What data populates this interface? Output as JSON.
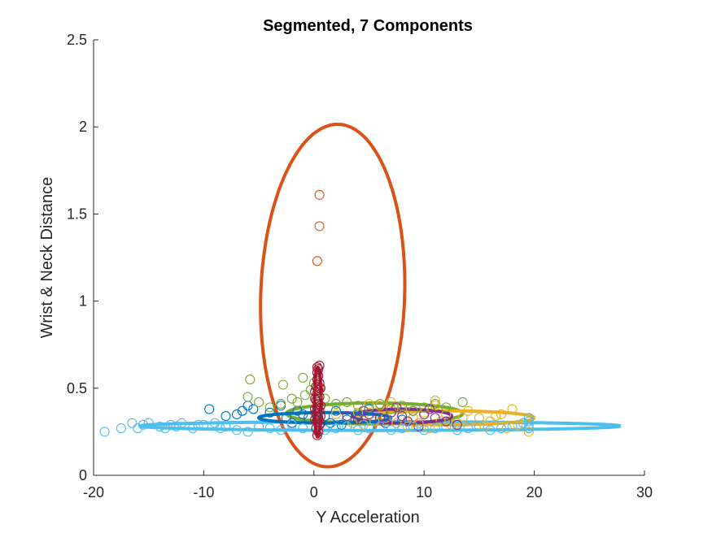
{
  "chart_data": {
    "type": "scatter",
    "title": "Segmented, 7 Components",
    "xlabel": "Y Acceleration",
    "ylabel": "Wrist & Neck Distance",
    "xlim": [
      -20,
      30
    ],
    "ylim": [
      0,
      2.5
    ],
    "xticks": [
      -20,
      -10,
      0,
      10,
      20,
      30
    ],
    "xtick_labels": [
      "-20",
      "-10",
      "0",
      "10",
      "20",
      "30"
    ],
    "yticks": [
      0,
      0.5,
      1,
      1.5,
      2,
      2.5
    ],
    "ytick_labels": [
      "0",
      "0.5",
      "1",
      "1.5",
      "2",
      "2.5"
    ],
    "grid": false,
    "marker": "open-circle",
    "series": [
      {
        "color": "#0072BD",
        "points": [
          [
            -9.5,
            0.38
          ],
          [
            -6,
            0.4
          ],
          [
            -5.5,
            0.38
          ],
          [
            -4,
            0.36
          ],
          [
            -3,
            0.4
          ],
          [
            -2.5,
            0.33
          ],
          [
            -1.5,
            0.37
          ],
          [
            -1,
            0.35
          ],
          [
            -0.5,
            0.33
          ],
          [
            0.2,
            0.36
          ],
          [
            1,
            0.34
          ],
          [
            2,
            0.37
          ],
          [
            3,
            0.32
          ],
          [
            4,
            0.35
          ],
          [
            5,
            0.38
          ],
          [
            6,
            0.33
          ],
          [
            7,
            0.36
          ],
          [
            8,
            0.32
          ],
          [
            -7,
            0.35
          ],
          [
            -8,
            0.34
          ],
          [
            -6.5,
            0.37
          ],
          [
            1.5,
            0.3
          ],
          [
            2.5,
            0.29
          ],
          [
            -2,
            0.3
          ]
        ]
      },
      {
        "color": "#D95319",
        "points": [
          [
            0.5,
            1.61
          ],
          [
            0.5,
            1.43
          ],
          [
            0.3,
            1.23
          ]
        ]
      },
      {
        "color": "#EDB120",
        "points": [
          [
            2,
            0.35
          ],
          [
            4,
            0.36
          ],
          [
            6,
            0.4
          ],
          [
            7,
            0.42
          ],
          [
            8,
            0.38
          ],
          [
            9,
            0.33
          ],
          [
            10,
            0.36
          ],
          [
            11,
            0.4
          ],
          [
            12,
            0.35
          ],
          [
            13,
            0.3
          ],
          [
            14,
            0.37
          ],
          [
            15,
            0.33
          ],
          [
            16,
            0.31
          ],
          [
            17,
            0.35
          ],
          [
            18,
            0.38
          ],
          [
            19,
            0.3
          ],
          [
            19.5,
            0.25
          ],
          [
            19.5,
            0.33
          ],
          [
            18.5,
            0.29
          ],
          [
            17.5,
            0.27
          ],
          [
            16.5,
            0.34
          ],
          [
            15.5,
            0.28
          ],
          [
            13.5,
            0.33
          ],
          [
            12.5,
            0.29
          ],
          [
            11.5,
            0.31
          ],
          [
            10.5,
            0.27
          ],
          [
            9.5,
            0.3
          ],
          [
            8.5,
            0.28
          ],
          [
            7.5,
            0.3
          ],
          [
            6.5,
            0.33
          ],
          [
            5.5,
            0.31
          ],
          [
            4.5,
            0.29
          ],
          [
            3.5,
            0.3
          ],
          [
            5,
            0.41
          ],
          [
            11,
            0.43
          ]
        ]
      },
      {
        "color": "#7E2F8E",
        "points": [
          [
            3,
            0.34
          ],
          [
            4,
            0.32
          ],
          [
            5,
            0.35
          ],
          [
            6,
            0.33
          ],
          [
            7,
            0.36
          ],
          [
            8,
            0.34
          ],
          [
            9,
            0.37
          ],
          [
            10,
            0.35
          ],
          [
            11,
            0.33
          ],
          [
            12,
            0.31
          ],
          [
            13,
            0.29
          ],
          [
            4.5,
            0.37
          ],
          [
            6.5,
            0.3
          ],
          [
            8.5,
            0.31
          ],
          [
            10.5,
            0.38
          ],
          [
            9.5,
            0.28
          ],
          [
            7.5,
            0.39
          ]
        ]
      },
      {
        "color": "#77AC30",
        "points": [
          [
            -5.8,
            0.55
          ],
          [
            -6,
            0.45
          ],
          [
            -2.8,
            0.52
          ],
          [
            -1,
            0.56
          ],
          [
            -0.8,
            0.46
          ],
          [
            -1.5,
            0.42
          ],
          [
            -3,
            0.41
          ],
          [
            -5,
            0.42
          ],
          [
            -4,
            0.39
          ],
          [
            1,
            0.44
          ],
          [
            2,
            0.41
          ],
          [
            3,
            0.42
          ],
          [
            4,
            0.4
          ],
          [
            5,
            0.39
          ],
          [
            6,
            0.41
          ],
          [
            7,
            0.38
          ],
          [
            8,
            0.4
          ],
          [
            9,
            0.37
          ],
          [
            10,
            0.39
          ],
          [
            11,
            0.41
          ],
          [
            12,
            0.39
          ],
          [
            13.5,
            0.42
          ],
          [
            -2,
            0.44
          ],
          [
            0.5,
            0.5
          ],
          [
            -0.3,
            0.49
          ],
          [
            0,
            0.53
          ]
        ]
      },
      {
        "color": "#4DBEEE",
        "points": [
          [
            -19,
            0.25
          ],
          [
            -17.5,
            0.27
          ],
          [
            -16.5,
            0.3
          ],
          [
            -16,
            0.27
          ],
          [
            -15,
            0.3
          ],
          [
            -14,
            0.28
          ],
          [
            -13,
            0.29
          ],
          [
            -12,
            0.3
          ],
          [
            -11,
            0.27
          ],
          [
            -10,
            0.29
          ],
          [
            -9,
            0.3
          ],
          [
            -8,
            0.28
          ],
          [
            -7,
            0.26
          ],
          [
            -6,
            0.25
          ],
          [
            -5,
            0.28
          ],
          [
            -4,
            0.27
          ],
          [
            -3,
            0.26
          ],
          [
            -2,
            0.29
          ],
          [
            -1,
            0.27
          ],
          [
            1,
            0.26
          ],
          [
            2,
            0.27
          ],
          [
            3,
            0.28
          ],
          [
            4,
            0.26
          ],
          [
            5,
            0.27
          ],
          [
            6,
            0.28
          ],
          [
            7,
            0.26
          ],
          [
            8,
            0.27
          ],
          [
            9,
            0.28
          ],
          [
            10,
            0.26
          ],
          [
            11,
            0.27
          ],
          [
            12,
            0.28
          ],
          [
            13,
            0.26
          ],
          [
            14,
            0.27
          ],
          [
            15,
            0.28
          ],
          [
            16,
            0.26
          ],
          [
            17,
            0.27
          ],
          [
            18,
            0.28
          ],
          [
            19,
            0.3
          ],
          [
            19.5,
            0.33
          ],
          [
            19.5,
            0.31
          ],
          [
            19.5,
            0.29
          ],
          [
            19.5,
            0.27
          ],
          [
            -15.5,
            0.29
          ],
          [
            -13.5,
            0.27
          ],
          [
            -12.5,
            0.28
          ],
          [
            -10.5,
            0.29
          ],
          [
            -8.5,
            0.27
          ]
        ]
      },
      {
        "color": "#A2142F",
        "points": [
          [
            0.3,
            0.23
          ],
          [
            0.4,
            0.25
          ],
          [
            0.2,
            0.27
          ],
          [
            0.5,
            0.29
          ],
          [
            0.3,
            0.31
          ],
          [
            0.4,
            0.33
          ],
          [
            0.2,
            0.35
          ],
          [
            0.5,
            0.37
          ],
          [
            0.3,
            0.39
          ],
          [
            0.4,
            0.41
          ],
          [
            0.2,
            0.43
          ],
          [
            0.5,
            0.45
          ],
          [
            0.3,
            0.47
          ],
          [
            0.4,
            0.49
          ],
          [
            0.2,
            0.51
          ],
          [
            0.5,
            0.53
          ],
          [
            0.3,
            0.55
          ],
          [
            0.4,
            0.57
          ],
          [
            0.3,
            0.59
          ],
          [
            0.4,
            0.61
          ],
          [
            0.5,
            0.63
          ],
          [
            0.3,
            0.62
          ],
          [
            0.6,
            0.3
          ],
          [
            0.1,
            0.32
          ],
          [
            0.6,
            0.4
          ],
          [
            0.1,
            0.44
          ],
          [
            0.6,
            0.5
          ],
          [
            0.1,
            0.38
          ],
          [
            0.6,
            0.34
          ],
          [
            0.1,
            0.48
          ]
        ]
      }
    ],
    "ellipses": [
      {
        "color": "#D95319",
        "cx": 1.7,
        "cy": 1.032,
        "a": 6.5,
        "b": 0.988,
        "angle_deg": -10
      },
      {
        "color": "#4DBEEE",
        "cx": 6.0,
        "cy": 0.283,
        "a": 21.8,
        "b": 0.025,
        "angle_deg": 0
      },
      {
        "color": "#77AC30",
        "cx": 5.5,
        "cy": 0.355,
        "a": 8.0,
        "b": 0.06,
        "angle_deg": 0
      },
      {
        "color": "#EDB120",
        "cx": 12.0,
        "cy": 0.33,
        "a": 8.0,
        "b": 0.04,
        "angle_deg": 0
      },
      {
        "color": "#7E2F8E",
        "cx": 8.0,
        "cy": 0.34,
        "a": 4.5,
        "b": 0.04,
        "angle_deg": 0
      },
      {
        "color": "#0072BD",
        "cx": 1.0,
        "cy": 0.33,
        "a": 6.0,
        "b": 0.03,
        "angle_deg": 0
      },
      {
        "color": "#A2142F",
        "cx": 0.35,
        "cy": 0.42,
        "a": 0.3,
        "b": 0.2,
        "angle_deg": 0
      }
    ]
  }
}
